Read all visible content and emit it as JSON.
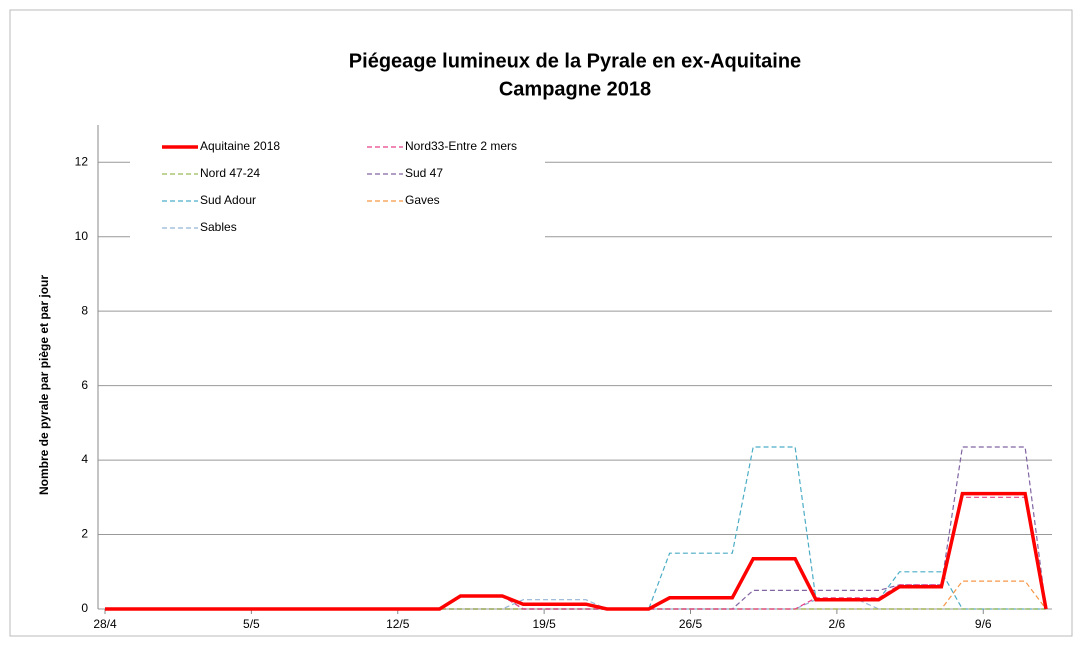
{
  "chart_data": {
    "type": "line",
    "title": "Piégeage lumineux de la Pyrale en ex-Aquitaine",
    "subtitle": "Campagne 2018",
    "y_label": "Nombre de pyrale par piège et par jour",
    "categories": [
      "28/4",
      null,
      null,
      null,
      null,
      null,
      null,
      "5/5",
      null,
      null,
      null,
      null,
      null,
      null,
      "12/5",
      null,
      null,
      null,
      null,
      null,
      null,
      "19/5",
      null,
      null,
      null,
      null,
      null,
      null,
      "26/5",
      null,
      null,
      null,
      null,
      null,
      null,
      "2/6",
      null,
      null,
      null,
      null,
      null,
      null,
      "9/6",
      null,
      null,
      null
    ],
    "ylim": [
      0,
      13
    ],
    "yticks": [
      0,
      2,
      4,
      6,
      8,
      10,
      12
    ],
    "grid": true,
    "legend": "upper left",
    "series": [
      {
        "name": "Aquitaine 2018",
        "color": "#ff0000",
        "dash": false,
        "values": [
          0,
          0,
          0,
          0,
          0,
          0,
          0,
          0,
          0,
          0,
          0,
          0,
          0,
          0,
          0,
          0,
          0,
          0.35,
          0.35,
          0.35,
          0.13,
          0.13,
          0.13,
          0.13,
          0,
          0,
          0,
          0.3,
          0.3,
          0.3,
          0.3,
          1.35,
          1.35,
          1.35,
          0.25,
          0.25,
          0.25,
          0.25,
          0.6,
          0.6,
          0.6,
          3.1,
          3.1,
          3.1,
          3.1,
          0
        ]
      },
      {
        "name": "Nord33-Entre 2 mers",
        "color": "#e8418c",
        "dash": true,
        "values": [
          0,
          0,
          0,
          0,
          0,
          0,
          0,
          0,
          0,
          0,
          0,
          0,
          0,
          0,
          0,
          0,
          0,
          0.35,
          0.35,
          0.35,
          0,
          0,
          0,
          0,
          0,
          0,
          0,
          0,
          0,
          0,
          0,
          0,
          0,
          0,
          0.3,
          0.3,
          0.3,
          0.3,
          0.65,
          0.65,
          0.65,
          3.0,
          3.0,
          3.0,
          3.0,
          0
        ]
      },
      {
        "name": "Nord 47-24",
        "color": "#9bbb59",
        "dash": true,
        "values": [
          0,
          0,
          0,
          0,
          0,
          0,
          0,
          0,
          0,
          0,
          0,
          0,
          0,
          0,
          0,
          0,
          0,
          0,
          0,
          0,
          0,
          0,
          0,
          0,
          0,
          0,
          0,
          0,
          0,
          0,
          0,
          0,
          0,
          0,
          0,
          0,
          0,
          0,
          0,
          0,
          0,
          0,
          0,
          0,
          0,
          0
        ]
      },
      {
        "name": "Sud 47",
        "color": "#8064a2",
        "dash": true,
        "values": [
          0,
          0,
          0,
          0,
          0,
          0,
          0,
          0,
          0,
          0,
          0,
          0,
          0,
          0,
          0,
          0,
          0,
          0,
          0,
          0,
          0,
          0,
          0,
          0,
          0,
          0,
          0,
          0,
          0,
          0,
          0,
          0.5,
          0.5,
          0.5,
          0.5,
          0.5,
          0.5,
          0.5,
          0.65,
          0.65,
          0.65,
          4.35,
          4.35,
          4.35,
          4.35,
          0
        ]
      },
      {
        "name": "Sud Adour",
        "color": "#4bacc6",
        "dash": true,
        "values": [
          0,
          0,
          0,
          0,
          0,
          0,
          0,
          0,
          0,
          0,
          0,
          0,
          0,
          0,
          0,
          0,
          0,
          0.35,
          0.35,
          0.35,
          0,
          0,
          0,
          0,
          0,
          0,
          0,
          1.5,
          1.5,
          1.5,
          1.5,
          4.35,
          4.35,
          4.35,
          0.25,
          0.25,
          0.25,
          0.25,
          1.0,
          1.0,
          1.0,
          0,
          0,
          0,
          0,
          0
        ]
      },
      {
        "name": "Gaves",
        "color": "#f79646",
        "dash": true,
        "values": [
          0,
          0,
          0,
          0,
          0,
          0,
          0,
          0,
          0,
          0,
          0,
          0,
          0,
          0,
          0,
          0,
          0,
          0,
          0,
          0,
          0,
          0,
          0,
          0,
          0,
          0,
          0,
          0,
          0,
          0,
          0,
          0,
          0,
          0,
          0,
          0,
          0,
          0,
          0,
          0,
          0,
          0.75,
          0.75,
          0.75,
          0.75,
          0
        ]
      },
      {
        "name": "Sables",
        "color": "#95b3d7",
        "dash": true,
        "values": [
          0,
          0,
          0,
          0,
          0,
          0,
          0,
          0,
          0,
          0,
          0,
          0,
          0,
          0,
          0,
          0,
          0,
          0,
          0,
          0,
          0.25,
          0.25,
          0.25,
          0.25,
          0,
          0,
          0,
          0,
          0,
          0,
          0,
          0,
          0,
          0,
          0.25,
          0.25,
          0.25,
          0,
          0,
          0,
          0,
          0,
          0,
          0,
          0,
          0
        ]
      }
    ]
  }
}
